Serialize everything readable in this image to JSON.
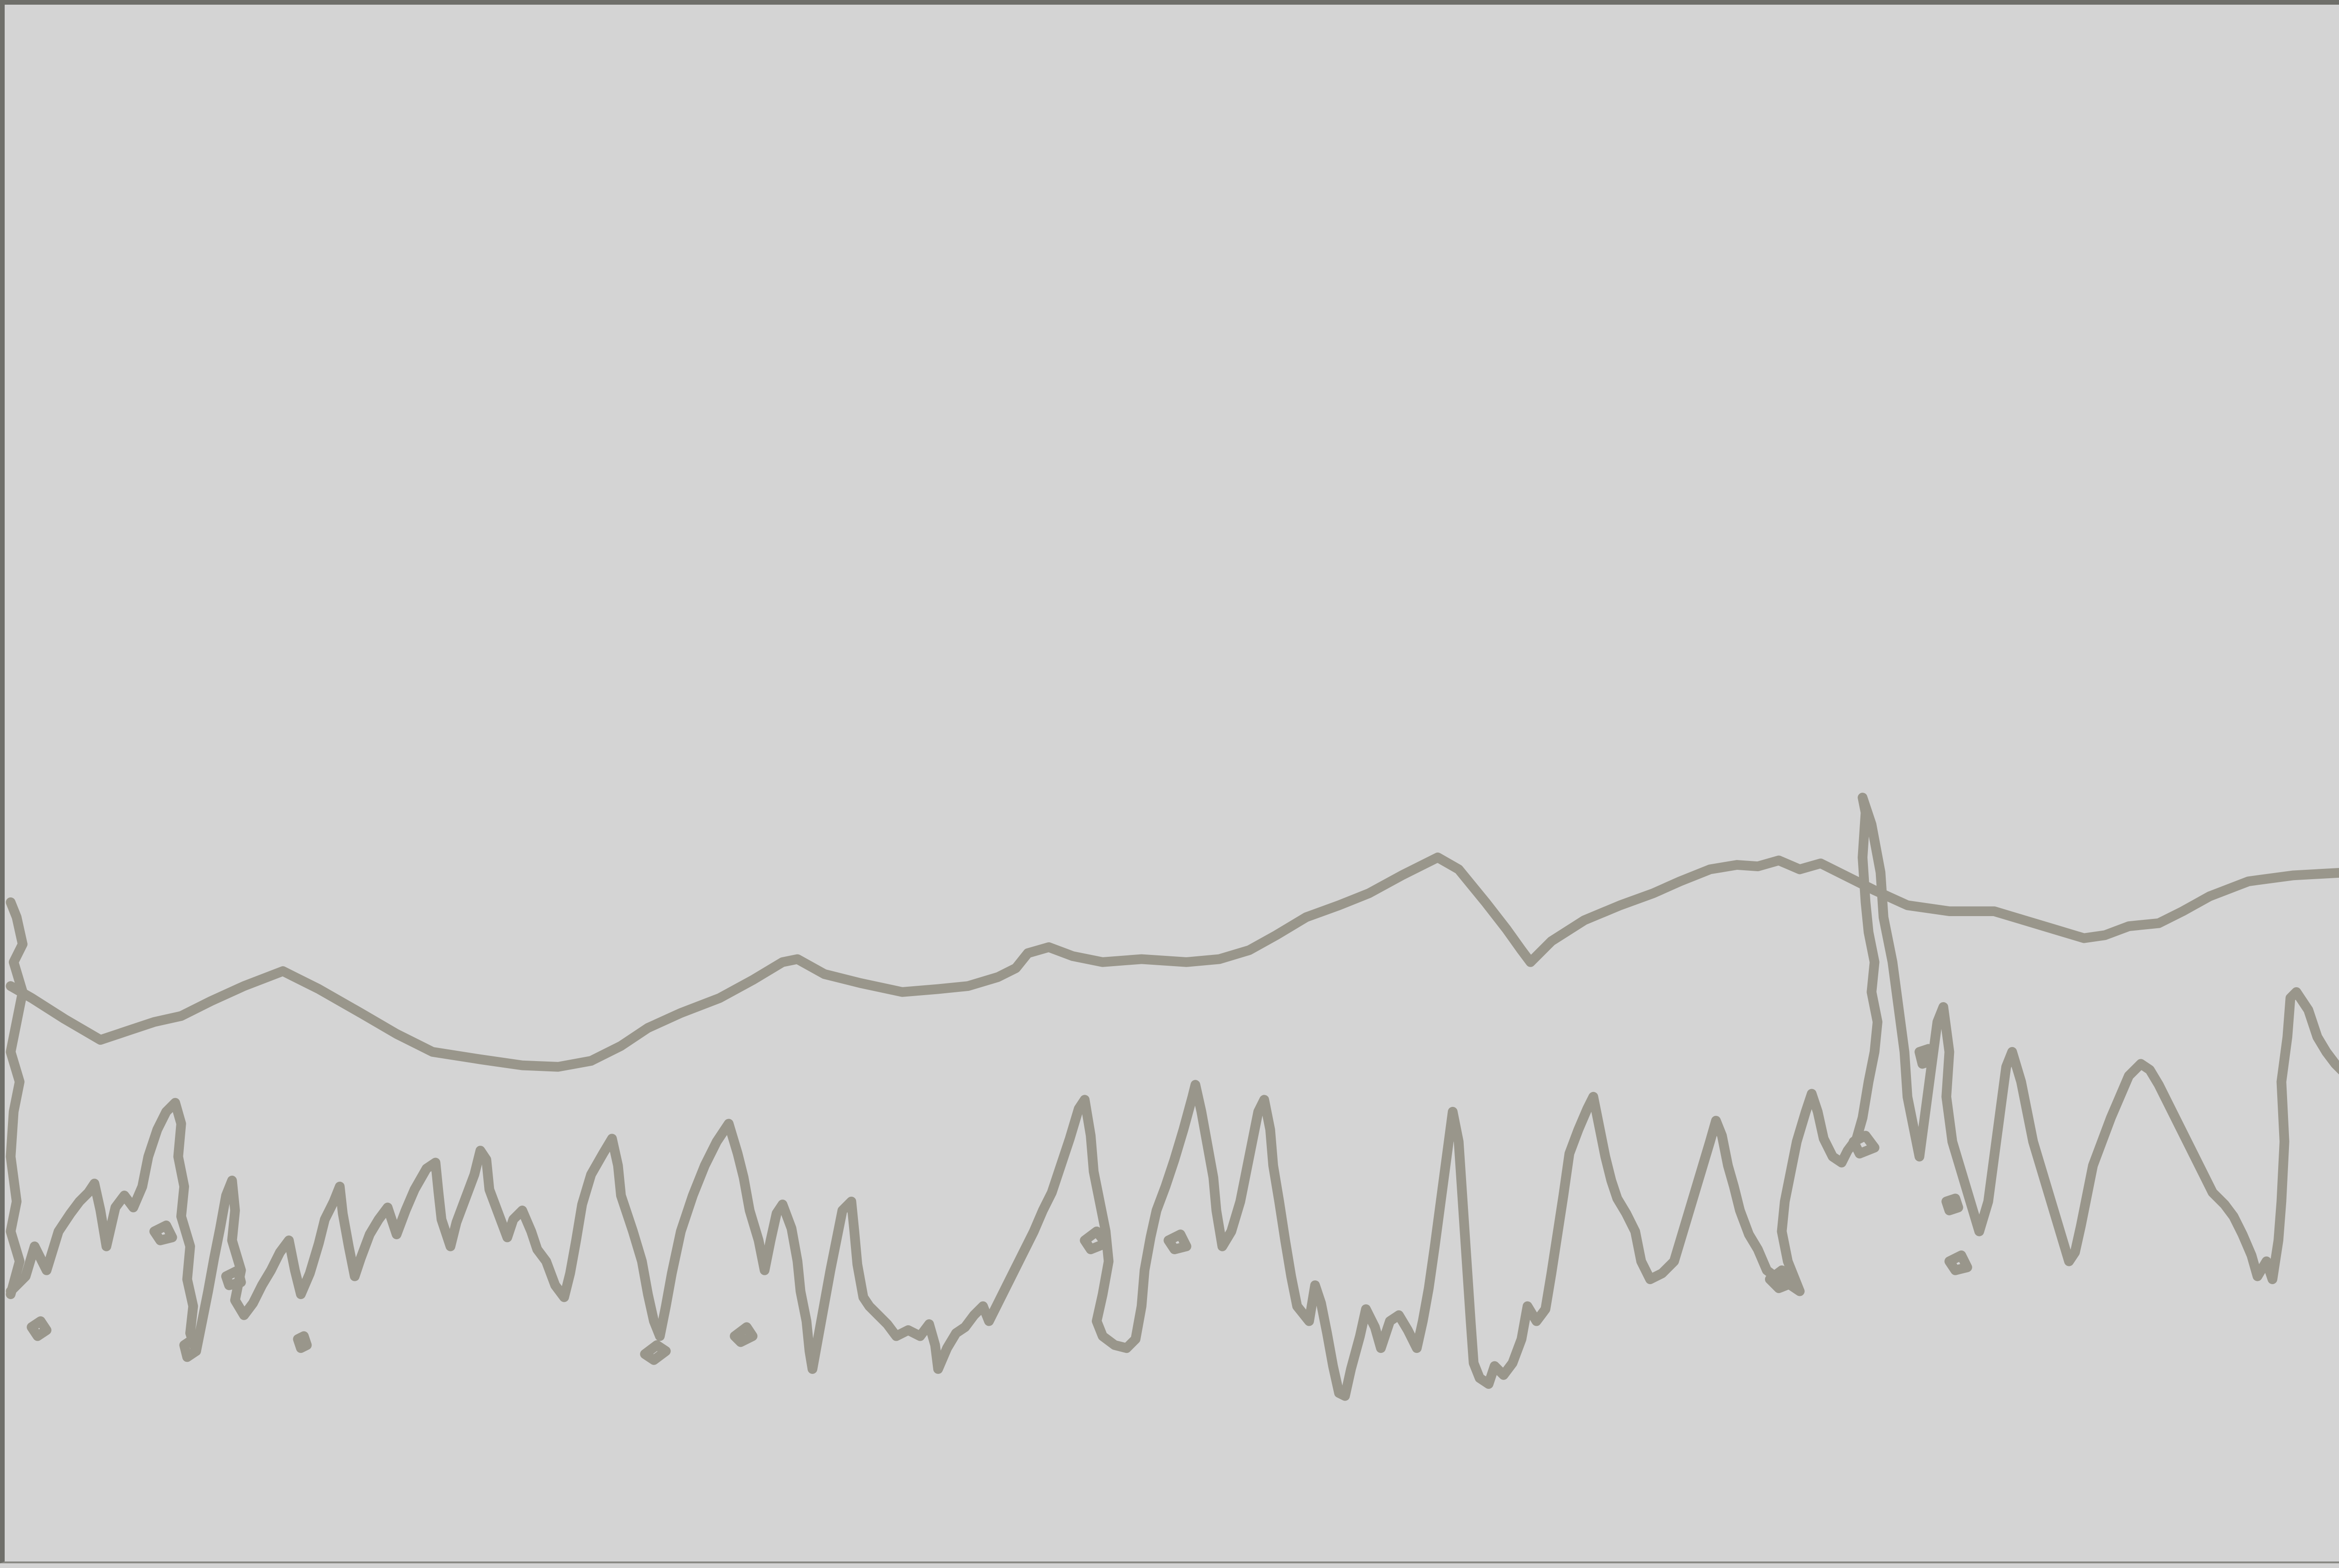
{
  "image": {
    "background_color": "#d4d4d4",
    "line_color": "#99968b",
    "frame_color": "#6f6f6a"
  }
}
